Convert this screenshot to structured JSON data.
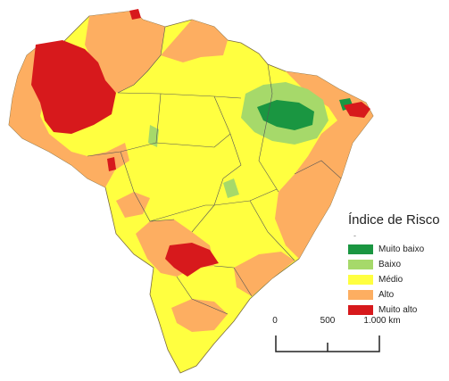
{
  "legend": {
    "title": "Índice de Risco",
    "marker": "-",
    "items": [
      {
        "label": "Muito baixo",
        "color": "#1a9641"
      },
      {
        "label": "Baixo",
        "color": "#a6d96a"
      },
      {
        "label": "Médio",
        "color": "#ffff40"
      },
      {
        "label": "Alto",
        "color": "#fdae61"
      },
      {
        "label": "Muito alto",
        "color": "#d7191c"
      }
    ]
  },
  "scale": {
    "labels": [
      "0",
      "500",
      "1.000 km"
    ]
  }
}
